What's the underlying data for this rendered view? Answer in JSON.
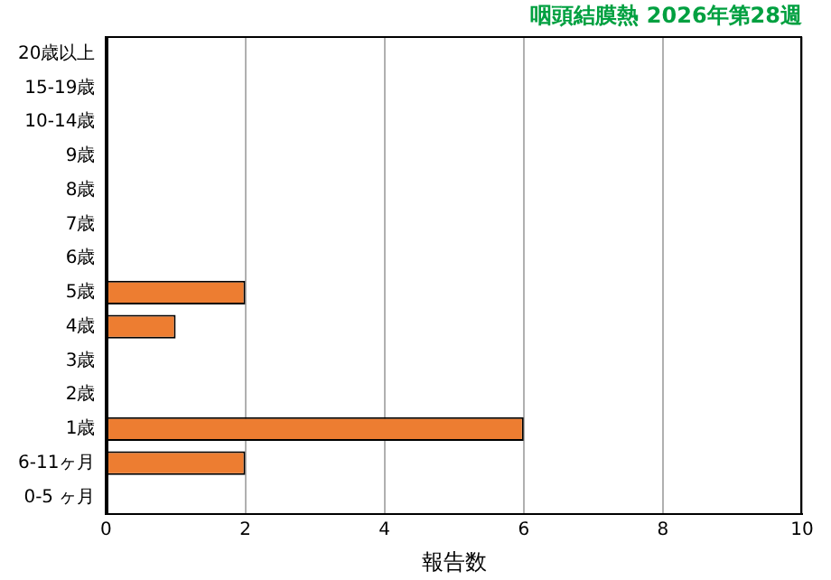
{
  "chart_data": {
    "type": "bar",
    "orientation": "horizontal",
    "title": "咽頭結膜熱 2026年第28週",
    "xlabel": "報告数",
    "categories": [
      "20歳以上",
      "15-19歳",
      "10-14歳",
      "9歳",
      "8歳",
      "7歳",
      "6歳",
      "5歳",
      "4歳",
      "3歳",
      "2歳",
      "1歳",
      "6-11ヶ月",
      "0-5 ヶ月"
    ],
    "values": [
      0,
      0,
      0,
      0,
      0,
      0,
      0,
      2,
      1,
      0,
      0,
      6,
      2,
      0
    ],
    "color": "#ed7d31",
    "xlim": [
      0,
      10
    ],
    "xticks": [
      0,
      2,
      4,
      6,
      8,
      10
    ],
    "grid": "x",
    "legend": false
  }
}
